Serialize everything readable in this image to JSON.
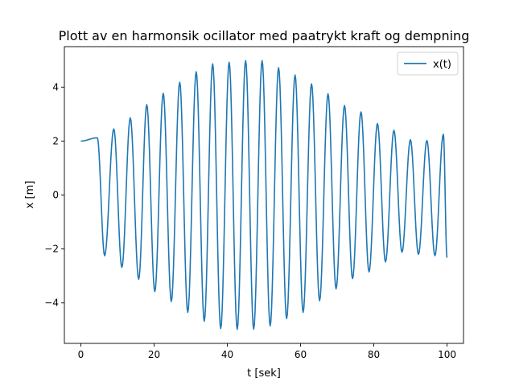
{
  "chart_data": {
    "type": "line",
    "title": "Plott av en harmonsik ocillator med paatrykt kraft og dempning",
    "xlabel": "t [sek]",
    "ylabel": "x [m]",
    "xlim": [
      -4.5,
      104.5
    ],
    "ylim": [
      -5.5,
      5.5
    ],
    "xticks": [
      0,
      20,
      40,
      60,
      80,
      100
    ],
    "xtick_labels": [
      "0",
      "20",
      "40",
      "60",
      "80",
      "100"
    ],
    "yticks": [
      -4,
      -2,
      0,
      2,
      4
    ],
    "ytick_labels": [
      "−4",
      "−2",
      "0",
      "2",
      "4"
    ],
    "grid": false,
    "legend_position": "top-right",
    "series": [
      {
        "name": "x(t)",
        "color": "#1f77b4",
        "x": [
          0,
          4.5,
          6.5,
          9,
          11.2,
          13.5,
          15.8,
          18,
          20.2,
          22.5,
          24.7,
          27,
          29.2,
          31.5,
          33.7,
          36,
          38.2,
          40.5,
          42.7,
          45,
          47.2,
          49.5,
          51.7,
          54,
          56.2,
          58.5,
          60.7,
          63,
          65.2,
          67.5,
          69.7,
          72,
          74.2,
          76.5,
          78.7,
          81,
          83.2,
          85.5,
          87.7,
          90,
          92.2,
          94.5,
          96.7,
          99,
          100
        ],
        "y": [
          2.0,
          2.12,
          -2.25,
          2.45,
          -2.68,
          2.86,
          -3.12,
          3.35,
          -3.58,
          3.77,
          -3.95,
          4.18,
          -4.35,
          4.57,
          -4.68,
          4.86,
          -4.95,
          4.92,
          -4.98,
          4.98,
          -4.97,
          4.98,
          -4.85,
          4.72,
          -4.58,
          4.45,
          -4.35,
          4.12,
          -3.92,
          3.75,
          -3.48,
          3.32,
          -3.1,
          3.08,
          -2.85,
          2.65,
          -2.48,
          2.4,
          -2.12,
          2.05,
          -2.2,
          2.02,
          -2.25,
          2.25,
          -2.32
        ]
      }
    ]
  }
}
